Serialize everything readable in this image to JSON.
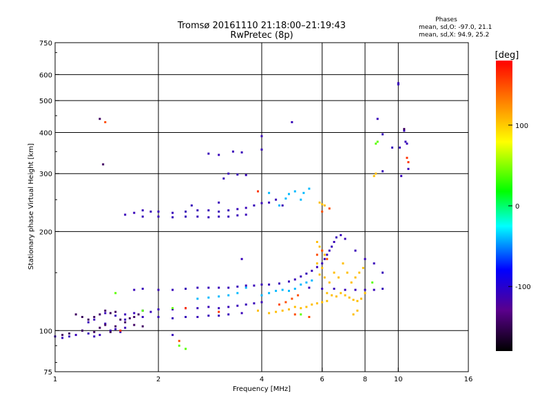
{
  "chart_data": {
    "type": "scatter",
    "title": "Tromsø 20161110 21:18:00–21:19:43",
    "subtitle": "RwPretec (8p)",
    "xlabel": "Frequency [MHz]",
    "ylabel": "Stationary phase Virtual Height [km]",
    "x_scale": "log",
    "y_scale": "log",
    "xlim": [
      1,
      16
    ],
    "ylim": [
      75,
      750
    ],
    "x_ticks": [
      1,
      2,
      4,
      6,
      8,
      10,
      16
    ],
    "y_ticks": [
      75,
      100,
      200,
      300,
      400,
      500,
      600,
      750
    ],
    "grid": true,
    "phases_header": "Phases",
    "phases_lines": [
      "mean, sd,O: -97.0, 21.1",
      "mean, sd,X:  94.9, 25.2"
    ],
    "colorbar": {
      "label": "[deg]",
      "range": [
        -180,
        180
      ],
      "ticks": [
        100,
        0,
        -100
      ],
      "colors": [
        "#000000",
        "#5a008c",
        "#0000ff",
        "#00ffff",
        "#00ff00",
        "#ffff00",
        "#ff8000",
        "#ff0000"
      ]
    },
    "series": [
      {
        "color_phase": -110,
        "points": [
          [
            1.0,
            96
          ],
          [
            1.05,
            95
          ],
          [
            1.1,
            96
          ],
          [
            1.15,
            97
          ],
          [
            1.2,
            100
          ],
          [
            1.25,
            98
          ],
          [
            1.3,
            96
          ],
          [
            1.35,
            97
          ],
          [
            1.4,
            105
          ],
          [
            1.45,
            100
          ],
          [
            1.5,
            101
          ],
          [
            1.55,
            99
          ],
          [
            1.6,
            102
          ],
          [
            1.25,
            106
          ],
          [
            1.3,
            108
          ],
          [
            1.4,
            113
          ],
          [
            1.5,
            111
          ],
          [
            1.6,
            112
          ],
          [
            1.7,
            113
          ],
          [
            1.8,
            115
          ],
          [
            1.9,
            114
          ],
          [
            2.0,
            116
          ],
          [
            2.2,
            116
          ],
          [
            2.4,
            117
          ],
          [
            2.6,
            117
          ],
          [
            2.8,
            118
          ],
          [
            3.0,
            117
          ],
          [
            3.2,
            118
          ],
          [
            3.4,
            119
          ],
          [
            3.6,
            120
          ],
          [
            3.8,
            121
          ],
          [
            4.0,
            122
          ],
          [
            1.6,
            108
          ],
          [
            1.8,
            110
          ],
          [
            2.0,
            110
          ],
          [
            2.2,
            109
          ],
          [
            2.4,
            110
          ],
          [
            2.6,
            110
          ],
          [
            2.8,
            111
          ],
          [
            3.0,
            111
          ],
          [
            3.2,
            112
          ],
          [
            3.5,
            113
          ],
          [
            1.7,
            133
          ],
          [
            1.8,
            134
          ],
          [
            2.0,
            133
          ],
          [
            2.2,
            133
          ],
          [
            2.4,
            134
          ],
          [
            2.6,
            135
          ],
          [
            2.8,
            135
          ],
          [
            3.0,
            135
          ],
          [
            3.2,
            135
          ],
          [
            3.4,
            136
          ],
          [
            3.6,
            137
          ],
          [
            3.8,
            137
          ],
          [
            4.0,
            138
          ],
          [
            4.2,
            138
          ],
          [
            4.5,
            139
          ],
          [
            4.8,
            141
          ],
          [
            5.0,
            143
          ],
          [
            5.2,
            146
          ],
          [
            5.4,
            149
          ],
          [
            5.6,
            152
          ],
          [
            5.8,
            156
          ],
          [
            6.0,
            160
          ],
          [
            6.1,
            165
          ],
          [
            6.2,
            170
          ],
          [
            6.3,
            175
          ],
          [
            6.4,
            180
          ],
          [
            6.5,
            186
          ],
          [
            6.6,
            192
          ],
          [
            6.8,
            195
          ],
          [
            7.0,
            190
          ],
          [
            7.5,
            175
          ],
          [
            8.0,
            165
          ],
          [
            8.5,
            160
          ],
          [
            9.0,
            150
          ],
          [
            5.5,
            135
          ],
          [
            6.0,
            134
          ],
          [
            6.5,
            134
          ],
          [
            7.0,
            133
          ],
          [
            7.5,
            133
          ],
          [
            8.0,
            133
          ],
          [
            8.5,
            133
          ],
          [
            9.0,
            134
          ],
          [
            1.6,
            225
          ],
          [
            1.7,
            228
          ],
          [
            1.8,
            232
          ],
          [
            1.9,
            230
          ],
          [
            2.0,
            230
          ],
          [
            2.2,
            228
          ],
          [
            2.4,
            230
          ],
          [
            2.6,
            232
          ],
          [
            2.8,
            232
          ],
          [
            3.0,
            230
          ],
          [
            3.2,
            232
          ],
          [
            3.4,
            234
          ],
          [
            3.6,
            236
          ],
          [
            3.8,
            240
          ],
          [
            4.0,
            244
          ],
          [
            4.2,
            245
          ],
          [
            4.4,
            250
          ],
          [
            4.6,
            240
          ],
          [
            1.8,
            222
          ],
          [
            2.0,
            222
          ],
          [
            2.2,
            221
          ],
          [
            2.4,
            222
          ],
          [
            2.6,
            222
          ],
          [
            2.8,
            221
          ],
          [
            3.0,
            222
          ],
          [
            3.2,
            222
          ],
          [
            3.4,
            224
          ],
          [
            3.6,
            225
          ],
          [
            2.5,
            240
          ],
          [
            3.0,
            245
          ],
          [
            3.2,
            300
          ],
          [
            3.4,
            298
          ],
          [
            3.1,
            290
          ],
          [
            3.6,
            297
          ],
          [
            2.8,
            345
          ],
          [
            3.0,
            342
          ],
          [
            3.3,
            350
          ],
          [
            3.5,
            348
          ],
          [
            4.0,
            355
          ],
          [
            4.0,
            390
          ],
          [
            4.9,
            430
          ],
          [
            10.0,
            565
          ],
          [
            10.0,
            560
          ],
          [
            10.4,
            405
          ],
          [
            10.5,
            375
          ],
          [
            8.7,
            440
          ],
          [
            9.0,
            395
          ],
          [
            9.6,
            360
          ],
          [
            10.1,
            360
          ],
          [
            10.6,
            370
          ],
          [
            10.7,
            310
          ],
          [
            9.0,
            305
          ],
          [
            10.2,
            295
          ],
          [
            3.5,
            165
          ],
          [
            2.2,
            97
          ]
        ]
      },
      {
        "color_phase": 105,
        "points": [
          [
            5.8,
            186
          ],
          [
            5.9,
            180
          ],
          [
            6.0,
            175
          ],
          [
            6.1,
            170
          ],
          [
            5.8,
            160
          ],
          [
            6.0,
            155
          ],
          [
            5.9,
            148
          ],
          [
            6.1,
            145
          ],
          [
            6.3,
            140
          ],
          [
            6.5,
            150
          ],
          [
            6.7,
            145
          ],
          [
            6.9,
            160
          ],
          [
            7.1,
            150
          ],
          [
            7.3,
            140
          ],
          [
            7.5,
            145
          ],
          [
            7.7,
            150
          ],
          [
            7.9,
            155
          ],
          [
            6.2,
            130
          ],
          [
            6.4,
            128
          ],
          [
            6.6,
            127
          ],
          [
            6.8,
            130
          ],
          [
            7.0,
            128
          ],
          [
            7.2,
            126
          ],
          [
            7.4,
            124
          ],
          [
            7.6,
            123
          ],
          [
            7.8,
            125
          ],
          [
            8.0,
            130
          ],
          [
            5.0,
            118
          ],
          [
            5.2,
            117
          ],
          [
            5.4,
            118
          ],
          [
            5.6,
            120
          ],
          [
            5.8,
            121
          ],
          [
            6.0,
            122
          ],
          [
            6.2,
            123
          ],
          [
            4.6,
            115
          ],
          [
            4.8,
            116
          ],
          [
            4.4,
            114
          ],
          [
            4.2,
            113
          ],
          [
            5.9,
            245
          ],
          [
            6.0,
            242
          ],
          [
            6.1,
            240
          ],
          [
            3.9,
            115
          ],
          [
            8.6,
            300
          ],
          [
            8.5,
            295
          ],
          [
            7.4,
            112
          ],
          [
            7.6,
            115
          ]
        ]
      },
      {
        "color_phase": -40,
        "points": [
          [
            4.0,
            128
          ],
          [
            4.2,
            130
          ],
          [
            4.4,
            132
          ],
          [
            4.6,
            133
          ],
          [
            4.8,
            132
          ],
          [
            5.0,
            134
          ],
          [
            5.2,
            138
          ],
          [
            5.4,
            140
          ],
          [
            5.6,
            142
          ],
          [
            3.6,
            135
          ],
          [
            3.4,
            130
          ],
          [
            3.2,
            128
          ],
          [
            3.0,
            127
          ],
          [
            2.8,
            126
          ],
          [
            2.6,
            125
          ],
          [
            5.0,
            265
          ],
          [
            5.3,
            262
          ],
          [
            5.5,
            270
          ],
          [
            4.8,
            260
          ],
          [
            4.5,
            240
          ],
          [
            4.2,
            262
          ],
          [
            4.7,
            252
          ],
          [
            5.2,
            250
          ]
        ]
      },
      {
        "color_phase": -145,
        "points": [
          [
            1.15,
            112
          ],
          [
            1.2,
            110
          ],
          [
            1.25,
            108
          ],
          [
            1.3,
            110
          ],
          [
            1.35,
            112
          ],
          [
            1.4,
            115
          ],
          [
            1.45,
            113
          ],
          [
            1.5,
            114
          ],
          [
            1.55,
            108
          ],
          [
            1.6,
            106
          ],
          [
            1.65,
            109
          ],
          [
            1.7,
            110
          ],
          [
            1.75,
            112
          ],
          [
            1.35,
            102
          ],
          [
            1.4,
            104
          ],
          [
            1.5,
            103
          ],
          [
            1.45,
            99
          ],
          [
            1.3,
            99
          ],
          [
            1.2,
            100
          ],
          [
            1.1,
            98
          ],
          [
            1.05,
            97
          ],
          [
            1.7,
            104
          ],
          [
            1.8,
            103
          ],
          [
            1.38,
            320
          ],
          [
            1.35,
            440
          ],
          [
            10.4,
            410
          ]
        ]
      },
      {
        "color_phase": 150,
        "points": [
          [
            5.8,
            170
          ],
          [
            6.0,
            175
          ],
          [
            6.2,
            165
          ],
          [
            4.5,
            120
          ],
          [
            4.7,
            122
          ],
          [
            4.9,
            125
          ],
          [
            5.1,
            128
          ],
          [
            5.5,
            110
          ],
          [
            5.0,
            112
          ],
          [
            6.3,
            235
          ],
          [
            1.4,
            430
          ],
          [
            2.3,
            93
          ],
          [
            6.0,
            230
          ]
        ]
      },
      {
        "color_phase": 40,
        "points": [
          [
            8.6,
            370
          ],
          [
            8.7,
            375
          ],
          [
            1.5,
            130
          ],
          [
            2.2,
            117
          ],
          [
            1.8,
            115
          ],
          [
            2.4,
            88
          ],
          [
            2.3,
            90
          ],
          [
            8.4,
            140
          ],
          [
            5.2,
            112
          ]
        ]
      },
      {
        "color_phase": 160,
        "points": [
          [
            2.4,
            117
          ],
          [
            3.0,
            114
          ],
          [
            1.55,
            100
          ],
          [
            3.9,
            265
          ],
          [
            10.6,
            335
          ],
          [
            10.7,
            325
          ]
        ]
      }
    ]
  }
}
